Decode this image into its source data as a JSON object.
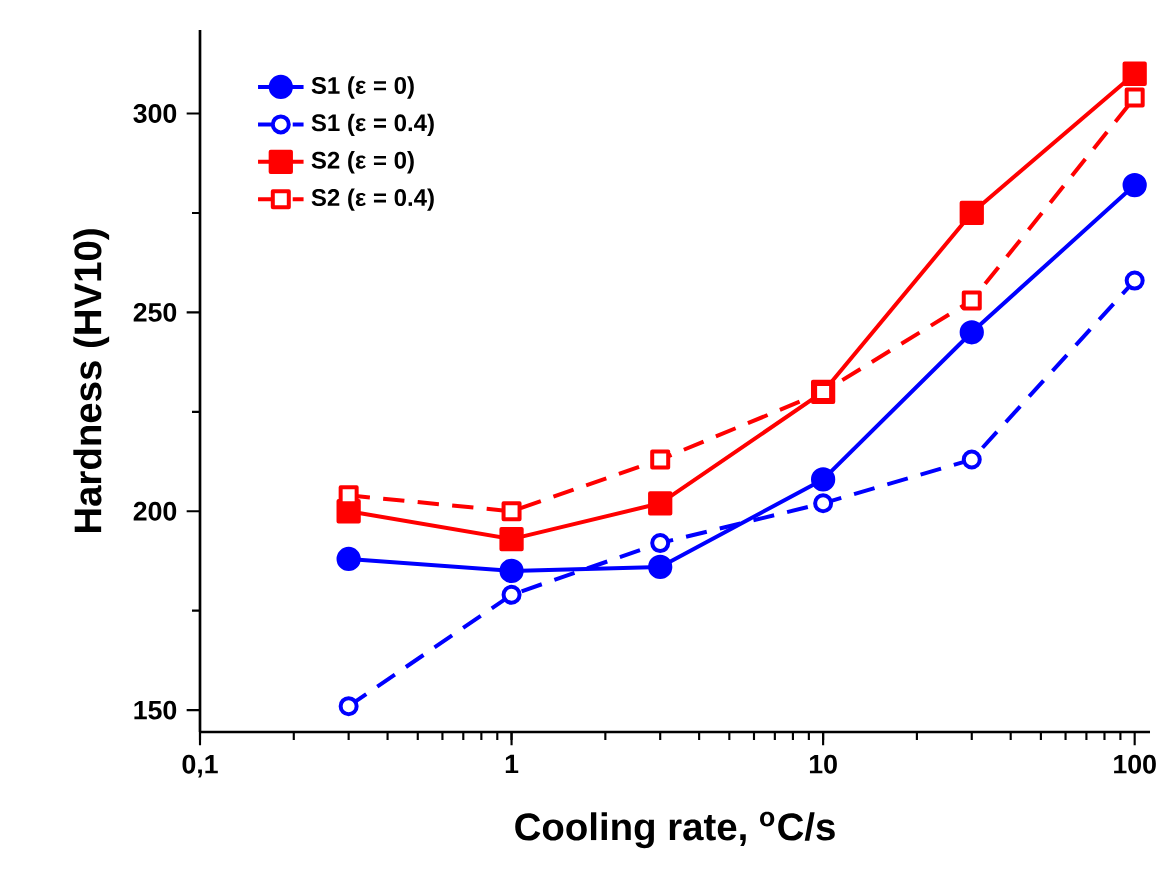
{
  "chart_data": {
    "type": "line",
    "xlabel": "Cooling rate, $^{o}$C/s",
    "ylabel": "Hardness (HV10)",
    "x": [
      0.3,
      1,
      3,
      10,
      30,
      100
    ],
    "series": [
      {
        "name": "S1 (ε = 0)",
        "color": "#0000ff",
        "marker": "circle",
        "line_style": "solid",
        "values": [
          188,
          185,
          186,
          208,
          245,
          282
        ]
      },
      {
        "name": "S1 (ε = 0.4)",
        "color": "#0000ff",
        "marker": "circle",
        "line_style": "dashed",
        "values": [
          151,
          179,
          192,
          202,
          213,
          258
        ]
      },
      {
        "name": "S2 (ε = 0)",
        "color": "#ff0000",
        "marker": "square",
        "line_style": "solid",
        "values": [
          200,
          193,
          202,
          230,
          275,
          310
        ]
      },
      {
        "name": "S2 (ε = 0.4)",
        "color": "#ff0000",
        "marker": "square",
        "line_style": "dashed",
        "values": [
          204,
          200,
          213,
          230,
          253,
          304
        ]
      }
    ],
    "log": "x",
    "xlim": [
      0.1,
      112
    ],
    "ylim": [
      144.5,
      321
    ],
    "xticks": [
      {
        "value": 0.1,
        "label": "0,1"
      },
      1,
      10,
      100
    ],
    "yticks": [
      150,
      200,
      250,
      300
    ],
    "grid": false,
    "legend": "top left"
  }
}
